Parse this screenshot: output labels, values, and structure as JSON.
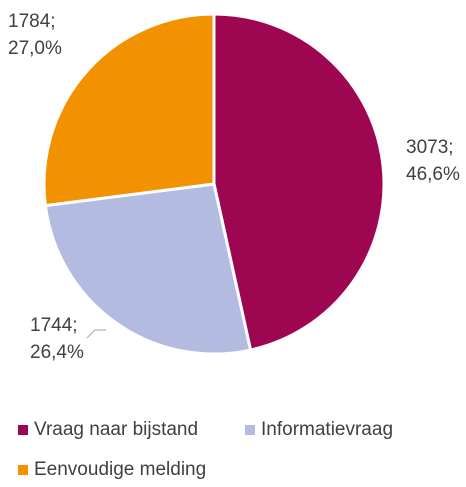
{
  "chart_data": {
    "type": "pie",
    "categories": [
      "Vraag naar bijstand",
      "Informatievraag",
      "Eenvoudige melding"
    ],
    "values": [
      3073,
      1744,
      1784
    ],
    "value_labels": [
      [
        "3073;",
        "46,6%"
      ],
      [
        "1744;",
        "26,4%"
      ],
      [
        "1784;",
        "27,0%"
      ]
    ],
    "colors": [
      "#9e0652",
      "#b4bbe0",
      "#f39200"
    ]
  }
}
